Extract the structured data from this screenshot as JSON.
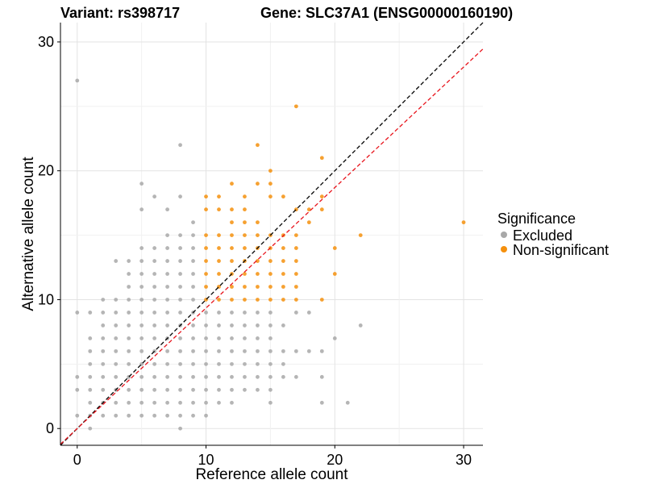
{
  "chart_data": {
    "type": "scatter",
    "title_variant": "Variant: rs398717",
    "title_gene": "Gene: SLC37A1 (ENSG00000160190)",
    "xlabel": "Reference allele count",
    "ylabel": "Alternative allele count",
    "xlim": [
      -1.3,
      31.5
    ],
    "ylim": [
      -1.3,
      31.5
    ],
    "xticks": [
      0,
      10,
      20,
      30
    ],
    "yticks": [
      0,
      10,
      20,
      30
    ],
    "grid": true,
    "legend_position": "right",
    "legend_title": "Significance",
    "reference_lines": [
      {
        "name": "identity",
        "slope": 1.0,
        "intercept": 0,
        "color": "#000000",
        "dash": true
      },
      {
        "name": "fit",
        "slope": 0.935,
        "intercept": 0,
        "color": "#e8141c",
        "dash": true
      }
    ],
    "series": [
      {
        "name": "Excluded",
        "color": "#a8a8a8",
        "points": [
          [
            0,
            27
          ],
          [
            0,
            9
          ],
          [
            0,
            4
          ],
          [
            0,
            3
          ],
          [
            0,
            1
          ],
          [
            1,
            9
          ],
          [
            1,
            7
          ],
          [
            1,
            6
          ],
          [
            1,
            5
          ],
          [
            1,
            4
          ],
          [
            1,
            3
          ],
          [
            1,
            2
          ],
          [
            1,
            1
          ],
          [
            1,
            0
          ],
          [
            2,
            10
          ],
          [
            2,
            9
          ],
          [
            2,
            8
          ],
          [
            2,
            7
          ],
          [
            2,
            6
          ],
          [
            2,
            5
          ],
          [
            2,
            4
          ],
          [
            2,
            3
          ],
          [
            2,
            2
          ],
          [
            2,
            1
          ],
          [
            3,
            13
          ],
          [
            3,
            10
          ],
          [
            3,
            9
          ],
          [
            3,
            8
          ],
          [
            3,
            7
          ],
          [
            3,
            6
          ],
          [
            3,
            5
          ],
          [
            3,
            4
          ],
          [
            3,
            3
          ],
          [
            3,
            2
          ],
          [
            3,
            1
          ],
          [
            4,
            13
          ],
          [
            4,
            12
          ],
          [
            4,
            11
          ],
          [
            4,
            10
          ],
          [
            4,
            9
          ],
          [
            4,
            8
          ],
          [
            4,
            7
          ],
          [
            4,
            6
          ],
          [
            4,
            5
          ],
          [
            4,
            4
          ],
          [
            4,
            3
          ],
          [
            4,
            2
          ],
          [
            4,
            1
          ],
          [
            5,
            19
          ],
          [
            5,
            17
          ],
          [
            5,
            14
          ],
          [
            5,
            13
          ],
          [
            5,
            12
          ],
          [
            5,
            11
          ],
          [
            5,
            10
          ],
          [
            5,
            9
          ],
          [
            5,
            8
          ],
          [
            5,
            7
          ],
          [
            5,
            6
          ],
          [
            5,
            5
          ],
          [
            5,
            4
          ],
          [
            5,
            3
          ],
          [
            5,
            2
          ],
          [
            5,
            1
          ],
          [
            6,
            18
          ],
          [
            6,
            14
          ],
          [
            6,
            13
          ],
          [
            6,
            12
          ],
          [
            6,
            11
          ],
          [
            6,
            10
          ],
          [
            6,
            9
          ],
          [
            6,
            8
          ],
          [
            6,
            7
          ],
          [
            6,
            6
          ],
          [
            6,
            5
          ],
          [
            6,
            4
          ],
          [
            6,
            3
          ],
          [
            6,
            2
          ],
          [
            6,
            1
          ],
          [
            7,
            17
          ],
          [
            7,
            15
          ],
          [
            7,
            14
          ],
          [
            7,
            13
          ],
          [
            7,
            12
          ],
          [
            7,
            11
          ],
          [
            7,
            10
          ],
          [
            7,
            9
          ],
          [
            7,
            8
          ],
          [
            7,
            7
          ],
          [
            7,
            6
          ],
          [
            7,
            5
          ],
          [
            7,
            4
          ],
          [
            7,
            3
          ],
          [
            7,
            2
          ],
          [
            7,
            1
          ],
          [
            8,
            22
          ],
          [
            8,
            18
          ],
          [
            8,
            15
          ],
          [
            8,
            14
          ],
          [
            8,
            13
          ],
          [
            8,
            12
          ],
          [
            8,
            11
          ],
          [
            8,
            10
          ],
          [
            8,
            9
          ],
          [
            8,
            8
          ],
          [
            8,
            7
          ],
          [
            8,
            6
          ],
          [
            8,
            5
          ],
          [
            8,
            4
          ],
          [
            8,
            3
          ],
          [
            8,
            2
          ],
          [
            8,
            1
          ],
          [
            8,
            0
          ],
          [
            9,
            16
          ],
          [
            9,
            15
          ],
          [
            9,
            14
          ],
          [
            9,
            13
          ],
          [
            9,
            12
          ],
          [
            9,
            11
          ],
          [
            9,
            10
          ],
          [
            9,
            9
          ],
          [
            9,
            8
          ],
          [
            9,
            7
          ],
          [
            9,
            6
          ],
          [
            9,
            5
          ],
          [
            9,
            4
          ],
          [
            9,
            3
          ],
          [
            9,
            2
          ],
          [
            9,
            1
          ],
          [
            10,
            9
          ],
          [
            10,
            8
          ],
          [
            10,
            7
          ],
          [
            10,
            6
          ],
          [
            10,
            5
          ],
          [
            10,
            4
          ],
          [
            10,
            3
          ],
          [
            10,
            2
          ],
          [
            10,
            1
          ],
          [
            11,
            9
          ],
          [
            11,
            8
          ],
          [
            11,
            7
          ],
          [
            11,
            6
          ],
          [
            11,
            5
          ],
          [
            11,
            4
          ],
          [
            11,
            3
          ],
          [
            11,
            2
          ],
          [
            12,
            9
          ],
          [
            12,
            8
          ],
          [
            12,
            7
          ],
          [
            12,
            6
          ],
          [
            12,
            5
          ],
          [
            12,
            4
          ],
          [
            12,
            3
          ],
          [
            12,
            2
          ],
          [
            13,
            9
          ],
          [
            13,
            8
          ],
          [
            13,
            7
          ],
          [
            13,
            6
          ],
          [
            13,
            5
          ],
          [
            13,
            4
          ],
          [
            13,
            3
          ],
          [
            14,
            9
          ],
          [
            14,
            8
          ],
          [
            14,
            7
          ],
          [
            14,
            6
          ],
          [
            14,
            5
          ],
          [
            14,
            4
          ],
          [
            14,
            3
          ],
          [
            15,
            9
          ],
          [
            15,
            8
          ],
          [
            15,
            7
          ],
          [
            15,
            6
          ],
          [
            15,
            5
          ],
          [
            15,
            4
          ],
          [
            15,
            3
          ],
          [
            15,
            2
          ],
          [
            16,
            8
          ],
          [
            16,
            6
          ],
          [
            16,
            5
          ],
          [
            16,
            4
          ],
          [
            17,
            9
          ],
          [
            17,
            6
          ],
          [
            17,
            4
          ],
          [
            18,
            9
          ],
          [
            18,
            6
          ],
          [
            19,
            6
          ],
          [
            19,
            4
          ],
          [
            19,
            2
          ],
          [
            20,
            7
          ],
          [
            21,
            2
          ],
          [
            22,
            8
          ]
        ]
      },
      {
        "name": "Non-significant",
        "color": "#f5900d",
        "points": [
          [
            10,
            18
          ],
          [
            10,
            17
          ],
          [
            10,
            15
          ],
          [
            10,
            14
          ],
          [
            10,
            13
          ],
          [
            10,
            12
          ],
          [
            10,
            11
          ],
          [
            10,
            10
          ],
          [
            11,
            18
          ],
          [
            11,
            17
          ],
          [
            11,
            15
          ],
          [
            11,
            14
          ],
          [
            11,
            13
          ],
          [
            11,
            12
          ],
          [
            11,
            11
          ],
          [
            11,
            10
          ],
          [
            12,
            19
          ],
          [
            12,
            17
          ],
          [
            12,
            16
          ],
          [
            12,
            15
          ],
          [
            12,
            14
          ],
          [
            12,
            13
          ],
          [
            12,
            12
          ],
          [
            12,
            11
          ],
          [
            12,
            10
          ],
          [
            13,
            18
          ],
          [
            13,
            17
          ],
          [
            13,
            16
          ],
          [
            13,
            15
          ],
          [
            13,
            14
          ],
          [
            13,
            13
          ],
          [
            13,
            12
          ],
          [
            13,
            11
          ],
          [
            13,
            10
          ],
          [
            14,
            22
          ],
          [
            14,
            19
          ],
          [
            14,
            16
          ],
          [
            14,
            15
          ],
          [
            14,
            14
          ],
          [
            14,
            13
          ],
          [
            14,
            12
          ],
          [
            14,
            11
          ],
          [
            14,
            10
          ],
          [
            15,
            20
          ],
          [
            15,
            19
          ],
          [
            15,
            18
          ],
          [
            15,
            15
          ],
          [
            15,
            14
          ],
          [
            15,
            13
          ],
          [
            15,
            12
          ],
          [
            15,
            11
          ],
          [
            15,
            10
          ],
          [
            16,
            18
          ],
          [
            16,
            15
          ],
          [
            16,
            14
          ],
          [
            16,
            13
          ],
          [
            16,
            12
          ],
          [
            16,
            11
          ],
          [
            16,
            10
          ],
          [
            17,
            25
          ],
          [
            17,
            17
          ],
          [
            17,
            15
          ],
          [
            17,
            14
          ],
          [
            17,
            13
          ],
          [
            17,
            12
          ],
          [
            17,
            11
          ],
          [
            17,
            10
          ],
          [
            18,
            17
          ],
          [
            18,
            16
          ],
          [
            19,
            21
          ],
          [
            19,
            18
          ],
          [
            19,
            17
          ],
          [
            19,
            10
          ],
          [
            20,
            14
          ],
          [
            20,
            12
          ],
          [
            22,
            15
          ],
          [
            30,
            16
          ]
        ]
      }
    ]
  }
}
